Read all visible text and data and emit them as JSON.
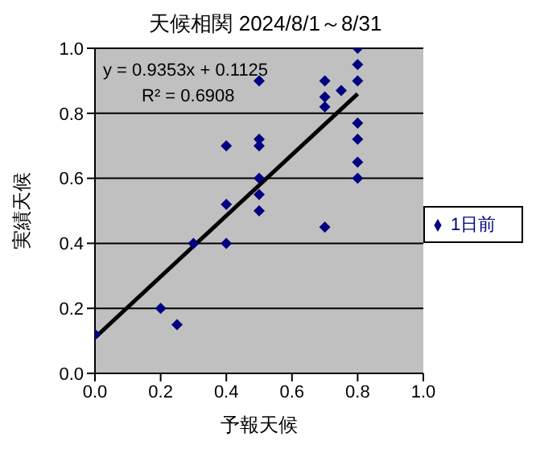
{
  "chart_data": {
    "type": "scatter",
    "title": "天候相関 2024/8/1～8/31",
    "xlabel": "予報天候",
    "ylabel": "実績天候",
    "annotations": [
      "y = 0.9353x + 0.1125",
      "R² = 0.6908"
    ],
    "series": [
      {
        "type": "line",
        "color": "#000000",
        "marker": "none",
        "x": [
          0,
          0.8
        ],
        "values": [
          0.11,
          0.86
        ]
      },
      {
        "name": "1日前",
        "color": "#000080",
        "marker": "diamond",
        "x": [
          0,
          0.2,
          0.25,
          0.3,
          0.4,
          0.4,
          0.4,
          0.5,
          0.5,
          0.5,
          0.5,
          0.5,
          0.5,
          0.7,
          0.7,
          0.7,
          0.7,
          0.75,
          0.8,
          0.8,
          0.8,
          0.8,
          0.8,
          0.8,
          0.8
        ],
        "values": [
          0.12,
          0.2,
          0.15,
          0.4,
          0.7,
          0.52,
          0.4,
          0.9,
          0.72,
          0.7,
          0.6,
          0.55,
          0.5,
          0.9,
          0.85,
          0.82,
          0.45,
          0.87,
          1.0,
          0.95,
          0.9,
          0.77,
          0.72,
          0.65,
          0.6
        ]
      }
    ],
    "xlim": [
      0,
      1
    ],
    "ylim": [
      0,
      1
    ],
    "xticks": [
      {
        "value": 0,
        "label": "0.0"
      },
      {
        "value": 0.2,
        "label": "0.2"
      },
      {
        "value": 0.4,
        "label": "0.4"
      },
      {
        "value": 0.6,
        "label": "0.6"
      },
      {
        "value": 0.8,
        "label": "0.8"
      },
      {
        "value": 1,
        "label": "1.0"
      }
    ],
    "yticks": [
      {
        "value": 0,
        "label": "0.0"
      },
      {
        "value": 0.2,
        "label": "0.2"
      },
      {
        "value": 0.4,
        "label": "0.4"
      },
      {
        "value": 0.6,
        "label": "0.6"
      },
      {
        "value": 0.8,
        "label": "0.8"
      },
      {
        "value": 1,
        "label": "1.0"
      }
    ],
    "grid": "y",
    "legend": "right"
  }
}
